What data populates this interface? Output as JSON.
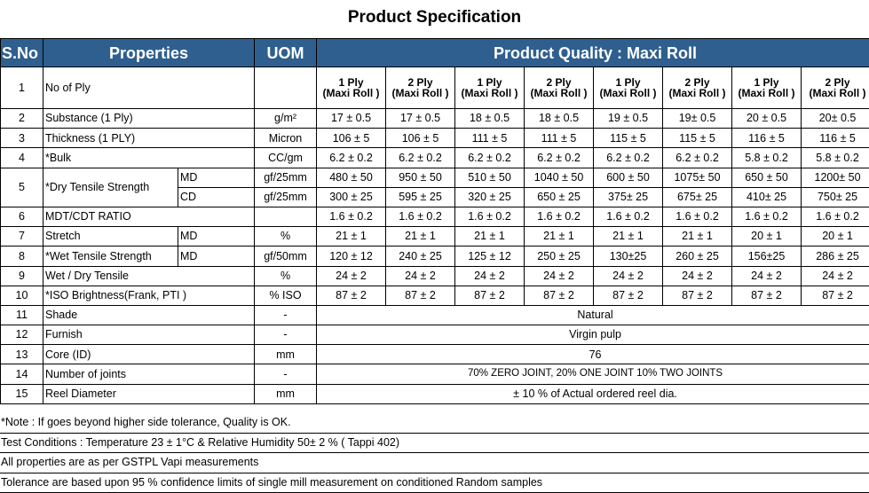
{
  "title": "Product Specification",
  "headers": {
    "sno": "S.No",
    "properties": "Properties",
    "uom": "UOM",
    "quality": "Product Quality : Maxi Roll"
  },
  "ply_columns": [
    {
      "ply": "1 Ply",
      "type": "(Maxi Roll )"
    },
    {
      "ply": "2 Ply",
      "type": "(Maxi Roll )"
    },
    {
      "ply": "1 Ply",
      "type": "(Maxi Roll )"
    },
    {
      "ply": "2 Ply",
      "type": "(Maxi Roll )"
    },
    {
      "ply": "1 Ply",
      "type": "(Maxi Roll )"
    },
    {
      "ply": "2 Ply",
      "type": "(Maxi Roll )"
    },
    {
      "ply": "1 Ply",
      "type": "(Maxi Roll )"
    },
    {
      "ply": "2 Ply",
      "type": "(Maxi Roll )"
    }
  ],
  "row1": {
    "sno": "1",
    "property": "No of Ply"
  },
  "rows": {
    "substance": {
      "sno": "2",
      "property": "Substance (1 Ply)",
      "uom": "g/m²",
      "values": [
        "17 ± 0.5",
        "17 ± 0.5",
        "18 ± 0.5",
        "18 ± 0.5",
        "19 ± 0.5",
        "19± 0.5",
        "20 ± 0.5",
        "20± 0.5"
      ]
    },
    "thickness": {
      "sno": "3",
      "property": "Thickness (1 PLY)",
      "uom": "Micron",
      "values": [
        "106 ± 5",
        "106 ± 5",
        "111 ± 5",
        "111 ± 5",
        "115 ± 5",
        "115 ± 5",
        "116 ± 5",
        "116 ± 5"
      ]
    },
    "bulk": {
      "sno": "4",
      "property": "*Bulk",
      "uom": "CC/gm",
      "values": [
        "6.2 ± 0.2",
        "6.2 ± 0.2",
        "6.2 ± 0.2",
        "6.2 ± 0.2",
        "6.2 ± 0.2",
        "6.2 ± 0.2",
        "5.8 ± 0.2",
        "5.8 ± 0.2"
      ]
    },
    "dry_md": {
      "sno": "5",
      "property": "*Dry Tensile Strength",
      "sub": "MD",
      "uom": "gf/25mm",
      "values": [
        "480 ± 50",
        "950 ± 50",
        "510 ± 50",
        "1040 ± 50",
        "600 ± 50",
        "1075± 50",
        "650 ± 50",
        "1200± 50"
      ]
    },
    "dry_cd": {
      "sub": "CD",
      "uom": "gf/25mm",
      "values": [
        "300 ± 25",
        "595 ± 25",
        "320 ± 25",
        "650 ± 25",
        "375± 25",
        "675± 25",
        "410± 25",
        "750± 25"
      ]
    },
    "mdt": {
      "sno": "6",
      "property": "MDT/CDT RATIO",
      "values": [
        "1.6 ± 0.2",
        "1.6 ± 0.2",
        "1.6 ± 0.2",
        "1.6 ± 0.2",
        "1.6 ± 0.2",
        "1.6 ± 0.2",
        "1.6 ± 0.2",
        "1.6 ± 0.2"
      ]
    },
    "stretch": {
      "sno": "7",
      "property": "Stretch",
      "sub": "MD",
      "uom": "%",
      "values": [
        "21 ± 1",
        "21 ± 1",
        "21 ± 1",
        "21 ± 1",
        "21 ± 1",
        "21 ± 1",
        "20 ± 1",
        "20 ± 1"
      ]
    },
    "wet": {
      "sno": "8",
      "property": "*Wet Tensile Strength",
      "sub": "MD",
      "uom": "gf/50mm",
      "values": [
        "120 ± 12",
        "240 ± 25",
        "125 ± 12",
        "250 ± 25",
        "130±25",
        "260 ± 25",
        "156±25",
        "286 ± 25"
      ]
    },
    "wetdry": {
      "sno": "9",
      "property": "Wet / Dry Tensile",
      "uom": "%",
      "values": [
        "24 ± 2",
        "24 ± 2",
        "24 ± 2",
        "24 ± 2",
        "24 ± 2",
        "24 ± 2",
        "24 ± 2",
        "24 ± 2"
      ]
    },
    "iso": {
      "sno": "10",
      "property": "*ISO Brightness(Frank, PTI )",
      "uom": "% ISO",
      "values": [
        "87 ± 2",
        "87 ± 2",
        "87 ± 2",
        "87 ± 2",
        "87 ± 2",
        "87 ± 2",
        "87 ± 2",
        "87 ± 2"
      ]
    },
    "shade": {
      "sno": "11",
      "property": "Shade",
      "uom": "-",
      "value": "Natural"
    },
    "furnish": {
      "sno": "12",
      "property": "Furnish",
      "uom": "-",
      "value": "Virgin pulp"
    },
    "core": {
      "sno": "13",
      "property": "Core (ID)",
      "uom": "mm",
      "value": "76"
    },
    "joints": {
      "sno": "14",
      "property": "Number of joints",
      "uom": "-",
      "value": "70% ZERO JOINT,  20% ONE JOINT  10% TWO JOINTS"
    },
    "reel": {
      "sno": "15",
      "property": "Reel Diameter",
      "uom": "mm",
      "value": "± 10 % of Actual ordered reel dia."
    }
  },
  "notes": [
    "*Note : If goes beyond higher side tolerance, Quality is OK.",
    "Test Conditions : Temperature 23 ± 1°C & Relative Humidity 50± 2 % ( Tappi 402)",
    "All properties are as per  GSTPL Vapi measurements",
    "Tolerance are based upon 95 % confidence limits of single mill measurement on conditioned Random samples"
  ],
  "colors": {
    "header_bg": "#2f5f8f",
    "header_text": "#ffffff"
  }
}
